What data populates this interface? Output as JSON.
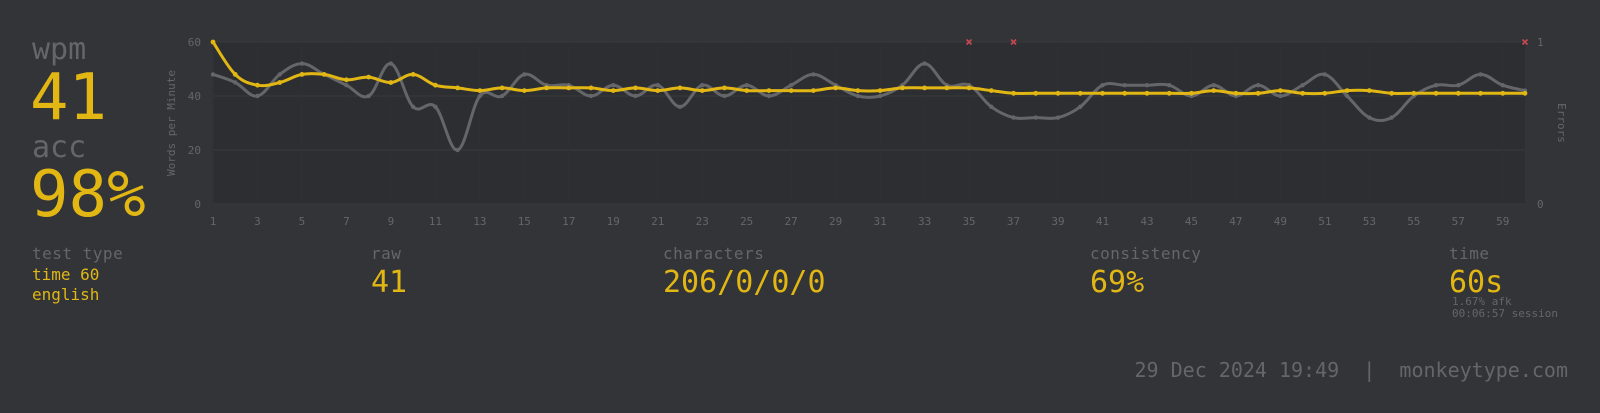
{
  "stats": {
    "wpm_label": "wpm",
    "wpm_value": "41",
    "acc_label": "acc",
    "acc_value": "98%"
  },
  "details": {
    "test_type_label": "test type",
    "test_type_mode": "time 60",
    "test_type_language": "english",
    "raw_label": "raw",
    "raw_value": "41",
    "characters_label": "characters",
    "characters_value": "206/0/0/0",
    "consistency_label": "consistency",
    "consistency_value": "69%",
    "time_label": "time",
    "time_value": "60s",
    "afk": "1.67% afk",
    "session": "00:06:57 session"
  },
  "footer": {
    "datetime": "29 Dec 2024 19:49",
    "separator": "|",
    "site": "monkeytype.com"
  },
  "colors": {
    "background": "#323437",
    "accent": "#e2b714",
    "sub": "#646669",
    "raw_line": "#646669",
    "error": "#ca4754"
  },
  "chart_data": {
    "type": "line",
    "xlabel": "",
    "ylabel": "Words per Minute",
    "y2label": "Errors",
    "xlim": [
      1,
      60
    ],
    "ylim": [
      0,
      60
    ],
    "y2lim": [
      0,
      1
    ],
    "x_ticks": [
      "1",
      "3",
      "5",
      "7",
      "9",
      "11",
      "13",
      "15",
      "17",
      "19",
      "21",
      "23",
      "25",
      "27",
      "29",
      "31",
      "33",
      "35",
      "37",
      "39",
      "41",
      "43",
      "45",
      "47",
      "49",
      "51",
      "53",
      "55",
      "57",
      "59"
    ],
    "y_ticks": [
      "0",
      "20",
      "40",
      "60"
    ],
    "y2_ticks": [
      "0",
      "1"
    ],
    "x": [
      1,
      2,
      3,
      4,
      5,
      6,
      7,
      8,
      9,
      10,
      11,
      12,
      13,
      14,
      15,
      16,
      17,
      18,
      19,
      20,
      21,
      22,
      23,
      24,
      25,
      26,
      27,
      28,
      29,
      30,
      31,
      32,
      33,
      34,
      35,
      36,
      37,
      38,
      39,
      40,
      41,
      42,
      43,
      44,
      45,
      46,
      47,
      48,
      49,
      50,
      51,
      52,
      53,
      54,
      55,
      56,
      57,
      58,
      59,
      60
    ],
    "series": [
      {
        "name": "wpm",
        "values": [
          60,
          48,
          44,
          45,
          48,
          48,
          46,
          47,
          45,
          48,
          44,
          43,
          42,
          43,
          42,
          43,
          43,
          43,
          42,
          43,
          42,
          43,
          42,
          43,
          42,
          42,
          42,
          42,
          43,
          42,
          42,
          43,
          43,
          43,
          43,
          42,
          41,
          41,
          41,
          41,
          41,
          41,
          41,
          41,
          41,
          42,
          41,
          41,
          42,
          41,
          41,
          42,
          42,
          41,
          41,
          41,
          41,
          41,
          41,
          41
        ]
      },
      {
        "name": "raw",
        "values": [
          48,
          45,
          40,
          48,
          52,
          48,
          44,
          40,
          52,
          36,
          36,
          20,
          40,
          40,
          48,
          44,
          44,
          40,
          44,
          40,
          44,
          36,
          44,
          40,
          44,
          40,
          44,
          48,
          44,
          40,
          40,
          44,
          52,
          44,
          44,
          36,
          32,
          32,
          32,
          36,
          44,
          44,
          44,
          44,
          40,
          44,
          40,
          44,
          40,
          44,
          48,
          40,
          32,
          32,
          40,
          44,
          44,
          48,
          44,
          42
        ]
      },
      {
        "name": "errors",
        "points": [
          [
            35,
            1
          ],
          [
            37,
            1
          ],
          [
            60,
            1
          ]
        ]
      }
    ]
  }
}
